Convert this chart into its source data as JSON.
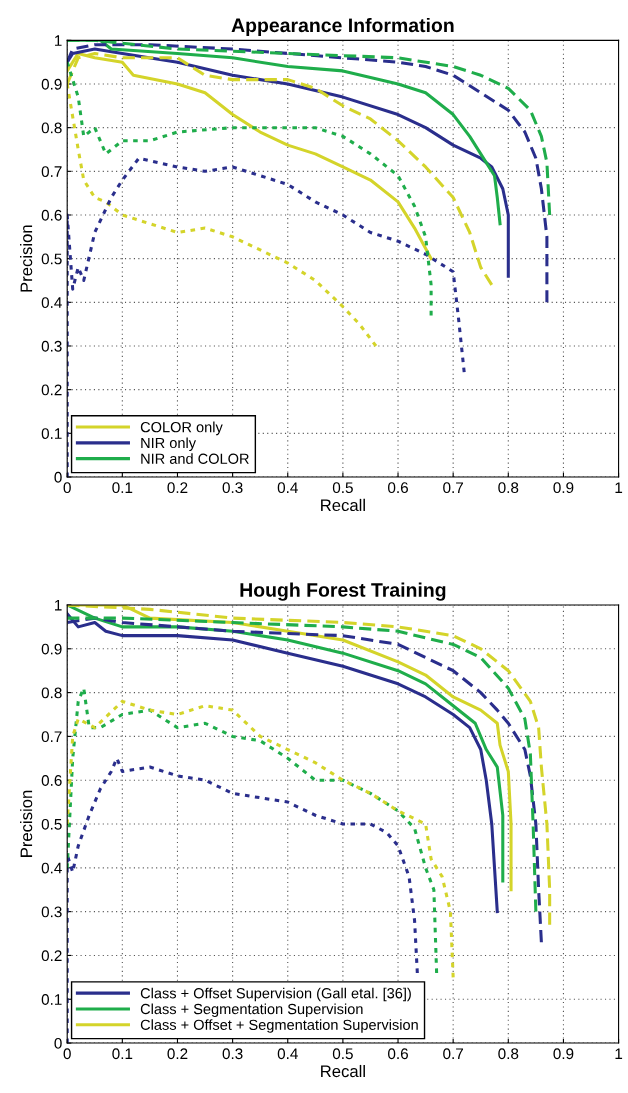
{
  "chart_data": [
    {
      "type": "line",
      "title": "Appearance Information",
      "xlabel": "Recall",
      "ylabel": "Precision",
      "xlim": [
        0,
        1
      ],
      "ylim": [
        0,
        1
      ],
      "xticks": [
        0,
        0.1,
        0.2,
        0.3,
        0.4,
        0.5,
        0.6,
        0.7,
        0.8,
        0.9,
        1
      ],
      "yticks": [
        0,
        0.1,
        0.2,
        0.3,
        0.4,
        0.5,
        0.6,
        0.7,
        0.8,
        0.9,
        1
      ],
      "grid": true,
      "legend": "bottom left",
      "marker": "none",
      "series": [
        {
          "name": "COLOR only",
          "color": "#d4d42a",
          "line_style": "solid",
          "x": [
            0.0,
            0.02,
            0.05,
            0.1,
            0.12,
            0.2,
            0.25,
            0.3,
            0.35,
            0.4,
            0.45,
            0.5,
            0.55,
            0.6,
            0.63,
            0.66
          ],
          "values": [
            0.93,
            0.97,
            0.96,
            0.95,
            0.92,
            0.9,
            0.88,
            0.83,
            0.79,
            0.76,
            0.74,
            0.71,
            0.68,
            0.63,
            0.57,
            0.5
          ]
        },
        {
          "name": "NIR only",
          "color": "#2a2e8c",
          "line_style": "solid",
          "x": [
            0.0,
            0.01,
            0.05,
            0.1,
            0.2,
            0.3,
            0.4,
            0.5,
            0.6,
            0.65,
            0.7,
            0.75,
            0.77,
            0.79,
            0.8,
            0.8
          ],
          "values": [
            0.95,
            0.97,
            0.98,
            0.97,
            0.95,
            0.92,
            0.9,
            0.87,
            0.83,
            0.8,
            0.76,
            0.73,
            0.71,
            0.66,
            0.6,
            0.46
          ]
        },
        {
          "name": "NIR and COLOR",
          "color": "#1fad4b",
          "line_style": "solid",
          "x": [
            0.0,
            0.06,
            0.08,
            0.2,
            0.3,
            0.4,
            0.5,
            0.6,
            0.65,
            0.7,
            0.73,
            0.76,
            0.775,
            0.78,
            0.785
          ],
          "values": [
            1.0,
            1.0,
            0.98,
            0.97,
            0.96,
            0.94,
            0.93,
            0.9,
            0.88,
            0.83,
            0.78,
            0.72,
            0.69,
            0.64,
            0.58
          ]
        },
        {
          "color": "#d4d42a",
          "line_style": "dashed",
          "x": [
            0.0,
            0.02,
            0.05,
            0.1,
            0.2,
            0.25,
            0.3,
            0.4,
            0.45,
            0.5,
            0.55,
            0.6,
            0.65,
            0.7,
            0.73,
            0.75,
            0.77
          ],
          "values": [
            0.9,
            0.96,
            0.97,
            0.96,
            0.96,
            0.92,
            0.91,
            0.91,
            0.89,
            0.85,
            0.82,
            0.77,
            0.71,
            0.64,
            0.56,
            0.48,
            0.44
          ]
        },
        {
          "color": "#2a2e8c",
          "line_style": "dashed",
          "x": [
            0.0,
            0.01,
            0.05,
            0.15,
            0.3,
            0.4,
            0.5,
            0.6,
            0.65,
            0.7,
            0.75,
            0.8,
            0.83,
            0.85,
            0.86,
            0.87,
            0.87
          ],
          "values": [
            0.95,
            0.98,
            0.99,
            0.99,
            0.98,
            0.97,
            0.96,
            0.95,
            0.94,
            0.92,
            0.88,
            0.84,
            0.79,
            0.73,
            0.66,
            0.55,
            0.4
          ]
        },
        {
          "color": "#1fad4b",
          "line_style": "dashed",
          "x": [
            0.0,
            0.05,
            0.2,
            0.4,
            0.6,
            0.7,
            0.75,
            0.8,
            0.84,
            0.86,
            0.87,
            0.875
          ],
          "values": [
            1.0,
            1.0,
            0.98,
            0.97,
            0.96,
            0.94,
            0.92,
            0.89,
            0.84,
            0.78,
            0.72,
            0.6
          ]
        },
        {
          "color": "#d4d42a",
          "line_style": "dotted",
          "x": [
            0.0,
            0.02,
            0.03,
            0.05,
            0.07,
            0.1,
            0.15,
            0.2,
            0.25,
            0.3,
            0.35,
            0.4,
            0.45,
            0.5,
            0.53,
            0.56
          ],
          "values": [
            0.9,
            0.75,
            0.68,
            0.64,
            0.63,
            0.6,
            0.58,
            0.56,
            0.57,
            0.55,
            0.52,
            0.49,
            0.45,
            0.39,
            0.35,
            0.3
          ]
        },
        {
          "color": "#2a2e8c",
          "line_style": "dotted",
          "x": [
            0.0,
            0.0,
            0.01,
            0.02,
            0.03,
            0.05,
            0.08,
            0.1,
            0.13,
            0.2,
            0.25,
            0.3,
            0.35,
            0.4,
            0.45,
            0.5,
            0.55,
            0.6,
            0.65,
            0.7,
            0.71,
            0.72
          ],
          "values": [
            0.0,
            0.6,
            0.43,
            0.48,
            0.45,
            0.56,
            0.64,
            0.68,
            0.73,
            0.71,
            0.7,
            0.71,
            0.69,
            0.67,
            0.63,
            0.6,
            0.56,
            0.54,
            0.51,
            0.47,
            0.36,
            0.24
          ]
        },
        {
          "color": "#1fad4b",
          "line_style": "dotted",
          "x": [
            0.0,
            0.02,
            0.03,
            0.05,
            0.07,
            0.1,
            0.15,
            0.2,
            0.3,
            0.4,
            0.45,
            0.5,
            0.55,
            0.6,
            0.63,
            0.65,
            0.66,
            0.66
          ],
          "values": [
            0.95,
            0.87,
            0.78,
            0.8,
            0.74,
            0.77,
            0.77,
            0.79,
            0.8,
            0.8,
            0.8,
            0.78,
            0.74,
            0.69,
            0.62,
            0.55,
            0.44,
            0.37
          ]
        }
      ]
    },
    {
      "type": "line",
      "title": "Hough Forest Training",
      "xlabel": "Recall",
      "ylabel": "Precision",
      "xlim": [
        0,
        1
      ],
      "ylim": [
        0,
        1
      ],
      "xticks": [
        0,
        0.1,
        0.2,
        0.3,
        0.4,
        0.5,
        0.6,
        0.7,
        0.8,
        0.9,
        1
      ],
      "yticks": [
        0,
        0.1,
        0.2,
        0.3,
        0.4,
        0.5,
        0.6,
        0.7,
        0.8,
        0.9,
        1
      ],
      "grid": true,
      "legend": "bottom left",
      "marker": "none",
      "series": [
        {
          "name": "Class + Offset Supervision (Gall etal. [36])",
          "color": "#2a2e8c",
          "line_style": "solid",
          "x": [
            0.0,
            0.02,
            0.05,
            0.07,
            0.1,
            0.2,
            0.3,
            0.4,
            0.5,
            0.6,
            0.65,
            0.7,
            0.73,
            0.75,
            0.76,
            0.77,
            0.775,
            0.78
          ],
          "values": [
            0.98,
            0.95,
            0.96,
            0.94,
            0.93,
            0.93,
            0.92,
            0.89,
            0.86,
            0.82,
            0.79,
            0.75,
            0.72,
            0.67,
            0.6,
            0.5,
            0.4,
            0.3
          ]
        },
        {
          "name": "Class + Segmentation Supervision",
          "color": "#1fad4b",
          "line_style": "solid",
          "x": [
            0.0,
            0.05,
            0.1,
            0.2,
            0.3,
            0.4,
            0.5,
            0.6,
            0.65,
            0.7,
            0.74,
            0.76,
            0.78,
            0.79,
            0.79
          ],
          "values": [
            1.0,
            0.97,
            0.95,
            0.95,
            0.94,
            0.92,
            0.89,
            0.85,
            0.82,
            0.77,
            0.73,
            0.67,
            0.63,
            0.52,
            0.37
          ]
        },
        {
          "name": "Class + Offset + Segmentation Supervision",
          "color": "#d4d42a",
          "line_style": "solid",
          "x": [
            0.0,
            0.1,
            0.15,
            0.3,
            0.4,
            0.5,
            0.6,
            0.65,
            0.7,
            0.75,
            0.78,
            0.785,
            0.8,
            0.805,
            0.805
          ],
          "values": [
            1.0,
            1.0,
            0.97,
            0.96,
            0.94,
            0.92,
            0.87,
            0.84,
            0.79,
            0.76,
            0.73,
            0.68,
            0.62,
            0.5,
            0.35
          ]
        },
        {
          "color": "#2a2e8c",
          "line_style": "dashed",
          "x": [
            0.0,
            0.05,
            0.1,
            0.2,
            0.3,
            0.5,
            0.6,
            0.65,
            0.7,
            0.75,
            0.78,
            0.8,
            0.83,
            0.84,
            0.85,
            0.855,
            0.86
          ],
          "values": [
            0.96,
            0.97,
            0.96,
            0.95,
            0.94,
            0.93,
            0.91,
            0.88,
            0.85,
            0.8,
            0.76,
            0.73,
            0.67,
            0.61,
            0.5,
            0.35,
            0.23
          ]
        },
        {
          "color": "#1fad4b",
          "line_style": "dashed",
          "x": [
            0.0,
            0.1,
            0.3,
            0.5,
            0.6,
            0.7,
            0.75,
            0.8,
            0.83,
            0.84,
            0.845,
            0.85
          ],
          "values": [
            0.97,
            0.97,
            0.96,
            0.95,
            0.94,
            0.91,
            0.88,
            0.81,
            0.74,
            0.66,
            0.5,
            0.3
          ]
        },
        {
          "color": "#d4d42a",
          "line_style": "dashed",
          "x": [
            0.0,
            0.15,
            0.3,
            0.5,
            0.6,
            0.7,
            0.75,
            0.8,
            0.84,
            0.855,
            0.86,
            0.87,
            0.875,
            0.875
          ],
          "values": [
            1.0,
            0.99,
            0.97,
            0.96,
            0.95,
            0.93,
            0.9,
            0.85,
            0.78,
            0.72,
            0.63,
            0.5,
            0.35,
            0.27
          ]
        },
        {
          "color": "#2a2e8c",
          "line_style": "dotted",
          "x": [
            0.0,
            0.0,
            0.01,
            0.02,
            0.04,
            0.06,
            0.08,
            0.09,
            0.1,
            0.15,
            0.2,
            0.25,
            0.3,
            0.35,
            0.4,
            0.45,
            0.5,
            0.55,
            0.58,
            0.6,
            0.62,
            0.63,
            0.635
          ],
          "values": [
            0.0,
            0.43,
            0.39,
            0.45,
            0.52,
            0.58,
            0.62,
            0.65,
            0.62,
            0.63,
            0.61,
            0.6,
            0.57,
            0.56,
            0.55,
            0.52,
            0.5,
            0.5,
            0.48,
            0.45,
            0.38,
            0.28,
            0.16
          ]
        },
        {
          "color": "#1fad4b",
          "line_style": "dotted",
          "x": [
            0.0,
            0.01,
            0.02,
            0.03,
            0.04,
            0.06,
            0.1,
            0.15,
            0.2,
            0.25,
            0.3,
            0.35,
            0.4,
            0.45,
            0.5,
            0.55,
            0.6,
            0.63,
            0.65,
            0.665,
            0.67
          ],
          "values": [
            0.4,
            0.65,
            0.78,
            0.81,
            0.72,
            0.72,
            0.75,
            0.76,
            0.72,
            0.73,
            0.7,
            0.69,
            0.65,
            0.6,
            0.6,
            0.57,
            0.53,
            0.49,
            0.4,
            0.35,
            0.16
          ]
        },
        {
          "color": "#d4d42a",
          "line_style": "dotted",
          "x": [
            0.0,
            0.01,
            0.02,
            0.05,
            0.1,
            0.15,
            0.2,
            0.25,
            0.3,
            0.35,
            0.4,
            0.45,
            0.5,
            0.55,
            0.6,
            0.65,
            0.66,
            0.68,
            0.695,
            0.7
          ],
          "values": [
            0.5,
            0.7,
            0.74,
            0.72,
            0.78,
            0.76,
            0.75,
            0.77,
            0.76,
            0.7,
            0.67,
            0.64,
            0.6,
            0.57,
            0.53,
            0.5,
            0.42,
            0.38,
            0.3,
            0.15
          ]
        }
      ]
    }
  ]
}
